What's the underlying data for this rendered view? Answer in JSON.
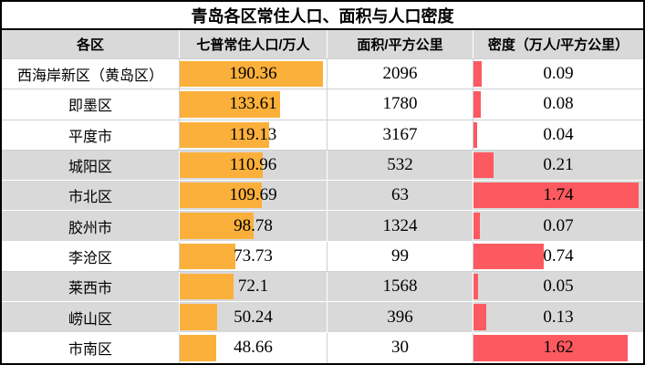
{
  "title": "青岛各区常住人口、面积与人口密度",
  "colors": {
    "bar-orange": "#FBB03B",
    "bar-red": "#FC5A60",
    "row-shaded": "#D9D9D9",
    "gridline": "#CCD0D4",
    "border": "#000000"
  },
  "table": {
    "columns": [
      {
        "label": "各区"
      },
      {
        "label": "七普常住人口/万人"
      },
      {
        "label": "面积/平方公里"
      },
      {
        "label": "密度（万人/平方公里）"
      }
    ],
    "rows": [
      {
        "district": "西海岸新区（黄岛区）",
        "population": "190.36",
        "area": "2096",
        "density": "0.09",
        "shaded": false,
        "pop_bar_pct": 97.5,
        "den_bar_pct": 5.0
      },
      {
        "district": "即墨区",
        "population": "133.61",
        "area": "1780",
        "density": "0.08",
        "shaded": false,
        "pop_bar_pct": 68.4,
        "den_bar_pct": 4.5
      },
      {
        "district": "平度市",
        "population": "119.13",
        "area": "3167",
        "density": "0.04",
        "shaded": false,
        "pop_bar_pct": 61.0,
        "den_bar_pct": 2.2
      },
      {
        "district": "城阳区",
        "population": "110.96",
        "area": "532",
        "density": "0.21",
        "shaded": true,
        "pop_bar_pct": 56.8,
        "den_bar_pct": 11.7
      },
      {
        "district": "市北区",
        "population": "109.69",
        "area": "63",
        "density": "1.74",
        "shaded": true,
        "pop_bar_pct": 56.2,
        "den_bar_pct": 97.3
      },
      {
        "district": "胶州市",
        "population": "98.78",
        "area": "1324",
        "density": "0.07",
        "shaded": true,
        "pop_bar_pct": 50.6,
        "den_bar_pct": 3.9
      },
      {
        "district": "李沧区",
        "population": "73.73",
        "area": "99",
        "density": "0.74",
        "shaded": false,
        "pop_bar_pct": 37.8,
        "den_bar_pct": 41.4
      },
      {
        "district": "莱西市",
        "population": "72.1",
        "area": "1568",
        "density": "0.05",
        "shaded": true,
        "pop_bar_pct": 36.9,
        "den_bar_pct": 2.8
      },
      {
        "district": "崂山区",
        "population": "50.24",
        "area": "396",
        "density": "0.13",
        "shaded": true,
        "pop_bar_pct": 25.7,
        "den_bar_pct": 7.3
      },
      {
        "district": "市南区",
        "population": "48.66",
        "area": "30",
        "density": "1.62",
        "shaded": false,
        "pop_bar_pct": 24.9,
        "den_bar_pct": 90.6
      }
    ]
  },
  "chart_data": {
    "type": "table",
    "title": "青岛各区常住人口、面积与人口密度",
    "columns": [
      "各区",
      "七普常住人口/万人",
      "面积/平方公里",
      "密度（万人/平方公里）"
    ],
    "rows": [
      [
        "西海岸新区（黄岛区）",
        190.36,
        2096,
        0.09
      ],
      [
        "即墨区",
        133.61,
        1780,
        0.08
      ],
      [
        "平度市",
        119.13,
        3167,
        0.04
      ],
      [
        "城阳区",
        110.96,
        532,
        0.21
      ],
      [
        "市北区",
        109.69,
        63,
        1.74
      ],
      [
        "胶州市",
        98.78,
        1324,
        0.07
      ],
      [
        "李沧区",
        73.73,
        99,
        0.74
      ],
      [
        "莱西市",
        72.1,
        1568,
        0.05
      ],
      [
        "崂山区",
        50.24,
        396,
        0.13
      ],
      [
        "市南区",
        48.66,
        30,
        1.62
      ]
    ],
    "embedded_bars": [
      {
        "column": "七普常住人口/万人",
        "type": "bar",
        "color": "#FBB03B",
        "scale_min": 0,
        "scale_max": 190.36
      },
      {
        "column": "密度（万人/平方公里）",
        "type": "bar",
        "color": "#FC5A60",
        "scale_min": 0,
        "scale_max": 1.74
      }
    ],
    "legend_position": "none",
    "grid": true
  }
}
